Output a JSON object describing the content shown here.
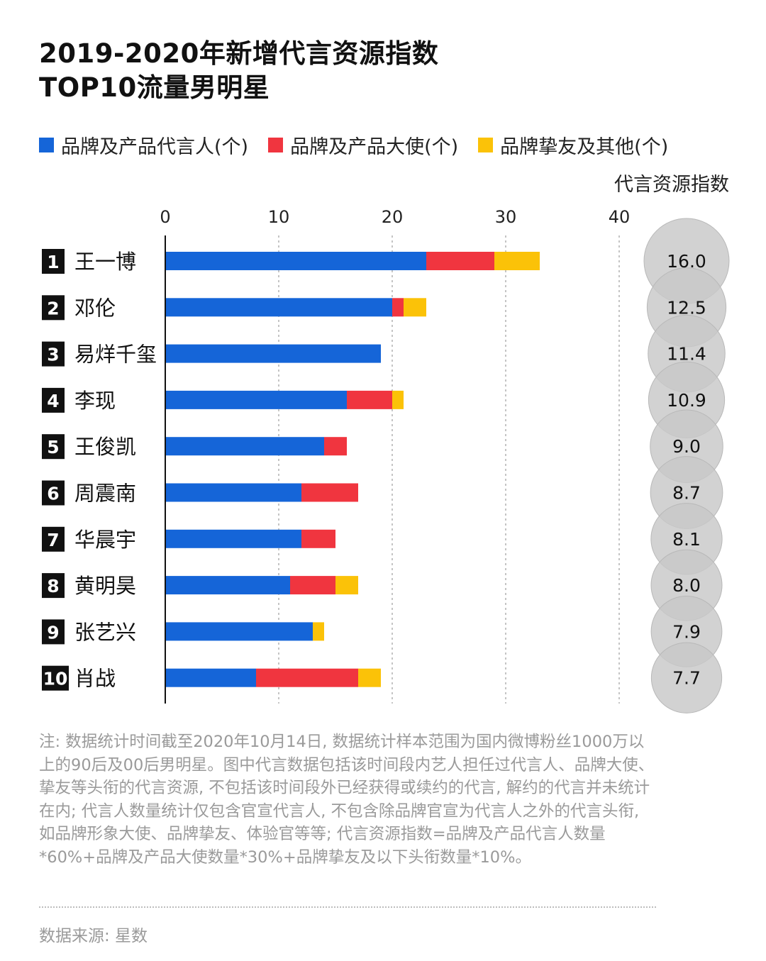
{
  "title": {
    "line1": "2019-2020年新增代言资源指数",
    "line2": "TOP10流量男明星"
  },
  "legend": [
    {
      "label": "品牌及产品代言人(个)",
      "color": "#1565d8"
    },
    {
      "label": "品牌及产品大使(个)",
      "color": "#f0353f"
    },
    {
      "label": "品牌挚友及其他(个)",
      "color": "#fbc208"
    }
  ],
  "index_header": "代言资源指数",
  "chart_data": {
    "type": "bar",
    "orientation": "horizontal",
    "stacked": true,
    "xlim": [
      0,
      40
    ],
    "x_ticks": [
      0,
      10,
      20,
      30,
      40
    ],
    "grid": true,
    "legend_position": "top",
    "categories": [
      {
        "rank": "1",
        "name": "王一博"
      },
      {
        "rank": "2",
        "name": "邓伦"
      },
      {
        "rank": "3",
        "name": "易烊千玺"
      },
      {
        "rank": "4",
        "name": "李现"
      },
      {
        "rank": "5",
        "name": "王俊凯"
      },
      {
        "rank": "6",
        "name": "周震南"
      },
      {
        "rank": "7",
        "name": "华晨宇"
      },
      {
        "rank": "8",
        "name": "黄明昊"
      },
      {
        "rank": "9",
        "name": "张艺兴"
      },
      {
        "rank": "10",
        "name": "肖战"
      }
    ],
    "series": [
      {
        "name": "品牌及产品代言人(个)",
        "color": "#1565d8",
        "values": [
          23,
          20,
          19,
          16,
          14,
          12,
          12,
          11,
          13,
          8
        ]
      },
      {
        "name": "品牌及产品大使(个)",
        "color": "#f0353f",
        "values": [
          6,
          1,
          0,
          4,
          2,
          5,
          3,
          4,
          0,
          9
        ]
      },
      {
        "name": "品牌挚友及其他(个)",
        "color": "#fbc208",
        "values": [
          4,
          2,
          0,
          1,
          0,
          0,
          0,
          2,
          1,
          2
        ]
      }
    ],
    "index_values": [
      "16.0",
      "12.5",
      "11.4",
      "10.9",
      "9.0",
      "8.7",
      "8.1",
      "8.0",
      "7.9",
      "7.7"
    ],
    "index_color": "#c8c8c8"
  },
  "note": "注: 数据统计时间截至2020年10月14日, 数据统计样本范围为国内微博粉丝1000万以上的90后及00后男明星。图中代言数据包括该时间段内艺人担任过代言人、品牌大使、挚友等头衔的代言资源, 不包括该时间段外已经获得或续约的代言, 解约的代言并未统计在内; 代言人数量统计仅包含官宣代言人, 不包含除品牌官宣为代言人之外的代言头衔, 如品牌形象大使、品牌挚友、体验官等等; 代言资源指数=品牌及产品代言人数量*60%+品牌及产品大使数量*30%+品牌挚友及以下头衔数量*10%。",
  "source": "数据来源: 星数"
}
